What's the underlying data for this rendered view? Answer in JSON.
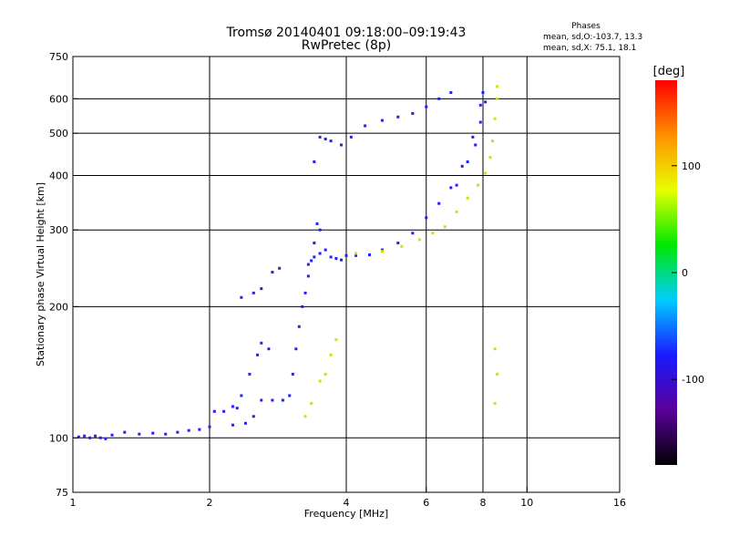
{
  "chart_data": {
    "type": "scatter",
    "title": "Tromsø 20140401 09:18:00–09:19:43",
    "subtitle": "RwPretec (8p)",
    "xlabel": "Frequency [MHz]",
    "ylabel": "Stationary phase Virtual Height [km]",
    "x_scale": "log",
    "y_scale": "log",
    "xlim": [
      1,
      16
    ],
    "ylim": [
      75,
      750
    ],
    "x_ticks": [
      1,
      2,
      4,
      6,
      8,
      10,
      16
    ],
    "y_ticks": [
      75,
      100,
      200,
      300,
      400,
      500,
      600,
      750
    ],
    "x_gridlines": [
      2,
      4,
      6,
      8,
      10
    ],
    "y_gridlines": [
      100,
      200,
      300,
      400,
      500,
      600
    ],
    "grid": true,
    "info": {
      "heading": "Phases",
      "line1": "mean, sd,O:-103.7, 13.3",
      "line2": "mean, sd,X:  75.1, 18.1"
    },
    "colorbar": {
      "label": "[deg]",
      "ticks": [
        100,
        0,
        -100
      ],
      "range": [
        -180,
        180
      ],
      "colors": [
        "#000000",
        "#5a009a",
        "#1a1aff",
        "#00ccff",
        "#00e800",
        "#e8ff00",
        "#ff9000",
        "#ff0000"
      ]
    },
    "series": [
      {
        "values": [
          [
            1.03,
            100.5
          ],
          [
            1.06,
            101
          ],
          [
            1.09,
            100
          ],
          [
            1.12,
            101
          ],
          [
            1.15,
            100
          ],
          [
            1.18,
            99.5
          ],
          [
            1.22,
            101.5
          ],
          [
            1.3,
            103
          ],
          [
            1.4,
            102
          ],
          [
            1.5,
            102.5
          ],
          [
            1.6,
            102
          ],
          [
            1.7,
            103
          ],
          [
            1.8,
            104
          ],
          [
            1.9,
            104.5
          ],
          [
            2.0,
            106
          ],
          [
            2.05,
            115
          ],
          [
            2.15,
            115
          ],
          [
            2.25,
            118
          ],
          [
            2.3,
            117
          ],
          [
            2.35,
            125
          ],
          [
            2.45,
            140
          ],
          [
            2.55,
            155
          ],
          [
            2.6,
            165
          ],
          [
            2.7,
            160
          ],
          [
            2.25,
            107
          ],
          [
            2.4,
            108
          ],
          [
            2.5,
            112
          ],
          [
            2.6,
            122
          ],
          [
            2.75,
            122
          ],
          [
            2.9,
            122
          ],
          [
            3.0,
            125
          ],
          [
            3.05,
            140
          ],
          [
            3.1,
            160
          ],
          [
            3.15,
            180
          ],
          [
            3.2,
            200
          ],
          [
            3.25,
            215
          ],
          [
            3.3,
            235
          ],
          [
            3.35,
            255
          ],
          [
            3.4,
            280
          ],
          [
            3.45,
            310
          ],
          [
            3.5,
            300
          ],
          [
            3.3,
            250
          ],
          [
            3.4,
            260
          ],
          [
            3.5,
            265
          ],
          [
            3.6,
            270
          ],
          [
            3.7,
            260
          ],
          [
            3.8,
            258
          ],
          [
            3.9,
            256
          ],
          [
            4.0,
            262
          ],
          [
            4.2,
            262
          ],
          [
            4.5,
            263
          ],
          [
            4.8,
            270
          ],
          [
            5.2,
            280
          ],
          [
            5.6,
            295
          ],
          [
            6.0,
            320
          ],
          [
            6.4,
            345
          ],
          [
            6.8,
            375
          ],
          [
            7.2,
            420
          ],
          [
            7.6,
            490
          ],
          [
            7.9,
            580
          ],
          [
            8.0,
            620
          ],
          [
            2.35,
            210
          ],
          [
            2.5,
            215
          ],
          [
            2.6,
            220
          ],
          [
            2.75,
            240
          ],
          [
            2.85,
            245
          ],
          [
            3.4,
            430
          ],
          [
            3.5,
            490
          ],
          [
            3.6,
            485
          ],
          [
            3.7,
            480
          ],
          [
            3.9,
            470
          ],
          [
            4.1,
            490
          ],
          [
            4.4,
            520
          ],
          [
            4.8,
            535
          ],
          [
            5.2,
            545
          ],
          [
            5.6,
            555
          ],
          [
            6.0,
            575
          ],
          [
            6.4,
            600
          ],
          [
            6.8,
            620
          ],
          [
            7.0,
            380
          ],
          [
            7.4,
            430
          ],
          [
            7.7,
            470
          ],
          [
            7.9,
            530
          ],
          [
            8.1,
            590
          ]
        ]
      },
      {
        "values": [
          [
            3.5,
            135
          ],
          [
            3.6,
            140
          ],
          [
            3.7,
            155
          ],
          [
            3.8,
            168
          ],
          [
            4.2,
            265
          ],
          [
            4.8,
            268
          ],
          [
            5.3,
            275
          ],
          [
            5.8,
            285
          ],
          [
            6.2,
            295
          ],
          [
            6.6,
            305
          ],
          [
            7.0,
            330
          ],
          [
            7.4,
            355
          ],
          [
            7.8,
            380
          ],
          [
            8.1,
            405
          ],
          [
            8.3,
            440
          ],
          [
            8.4,
            480
          ],
          [
            8.5,
            540
          ],
          [
            8.6,
            600
          ],
          [
            8.6,
            640
          ],
          [
            3.25,
            112
          ],
          [
            3.35,
            120
          ],
          [
            8.5,
            120
          ],
          [
            8.6,
            140
          ],
          [
            8.5,
            160
          ]
        ]
      }
    ]
  }
}
